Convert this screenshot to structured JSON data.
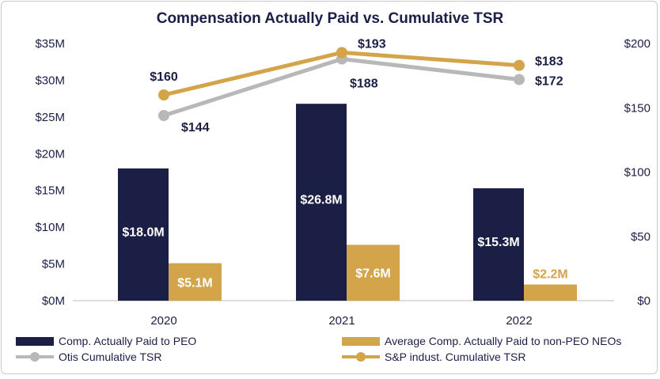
{
  "chart_data": {
    "type": "bar",
    "title": "Compensation Actually Paid vs. Cumulative TSR",
    "categories": [
      "2020",
      "2021",
      "2022"
    ],
    "left_axis": {
      "ylim": [
        0,
        35
      ],
      "ticks": [
        0,
        5,
        10,
        15,
        20,
        25,
        30,
        35
      ],
      "tick_labels": [
        "$0M",
        "$5M",
        "$10M",
        "$15M",
        "$20M",
        "$25M",
        "$30M",
        "$35M"
      ]
    },
    "right_axis": {
      "ylim": [
        0,
        200
      ],
      "ticks": [
        0,
        50,
        100,
        150,
        200
      ],
      "tick_labels": [
        "$0",
        "$50",
        "$100",
        "$150",
        "$200"
      ]
    },
    "series": [
      {
        "name": "Comp. Actually Paid to PEO",
        "kind": "bar",
        "axis": "left",
        "color": "#1b1f45",
        "values": [
          18.0,
          26.8,
          15.3
        ],
        "labels": [
          "$18.0M",
          "$26.8M",
          "$15.3M"
        ],
        "label_color": "#ffffff"
      },
      {
        "name": "Average Comp. Actually Paid to non-PEO NEOs",
        "kind": "bar",
        "axis": "left",
        "color": "#d4a44a",
        "values": [
          5.1,
          7.6,
          2.2
        ],
        "labels": [
          "$5.1M",
          "$7.6M",
          "$2.2M"
        ],
        "label_colors": [
          "#ffffff",
          "#ffffff",
          "#d4a44a"
        ]
      },
      {
        "name": "Otis Cumulative TSR",
        "kind": "line",
        "axis": "right",
        "color": "#b8b8b8",
        "values": [
          144,
          188,
          172
        ],
        "labels": [
          "$144",
          "$188",
          "$172"
        ]
      },
      {
        "name": "S&P indust. Cumulative TSR",
        "kind": "line",
        "axis": "right",
        "color": "#d4a44a",
        "values": [
          160,
          193,
          183
        ],
        "labels": [
          "$160",
          "$193",
          "$183"
        ]
      }
    ]
  }
}
